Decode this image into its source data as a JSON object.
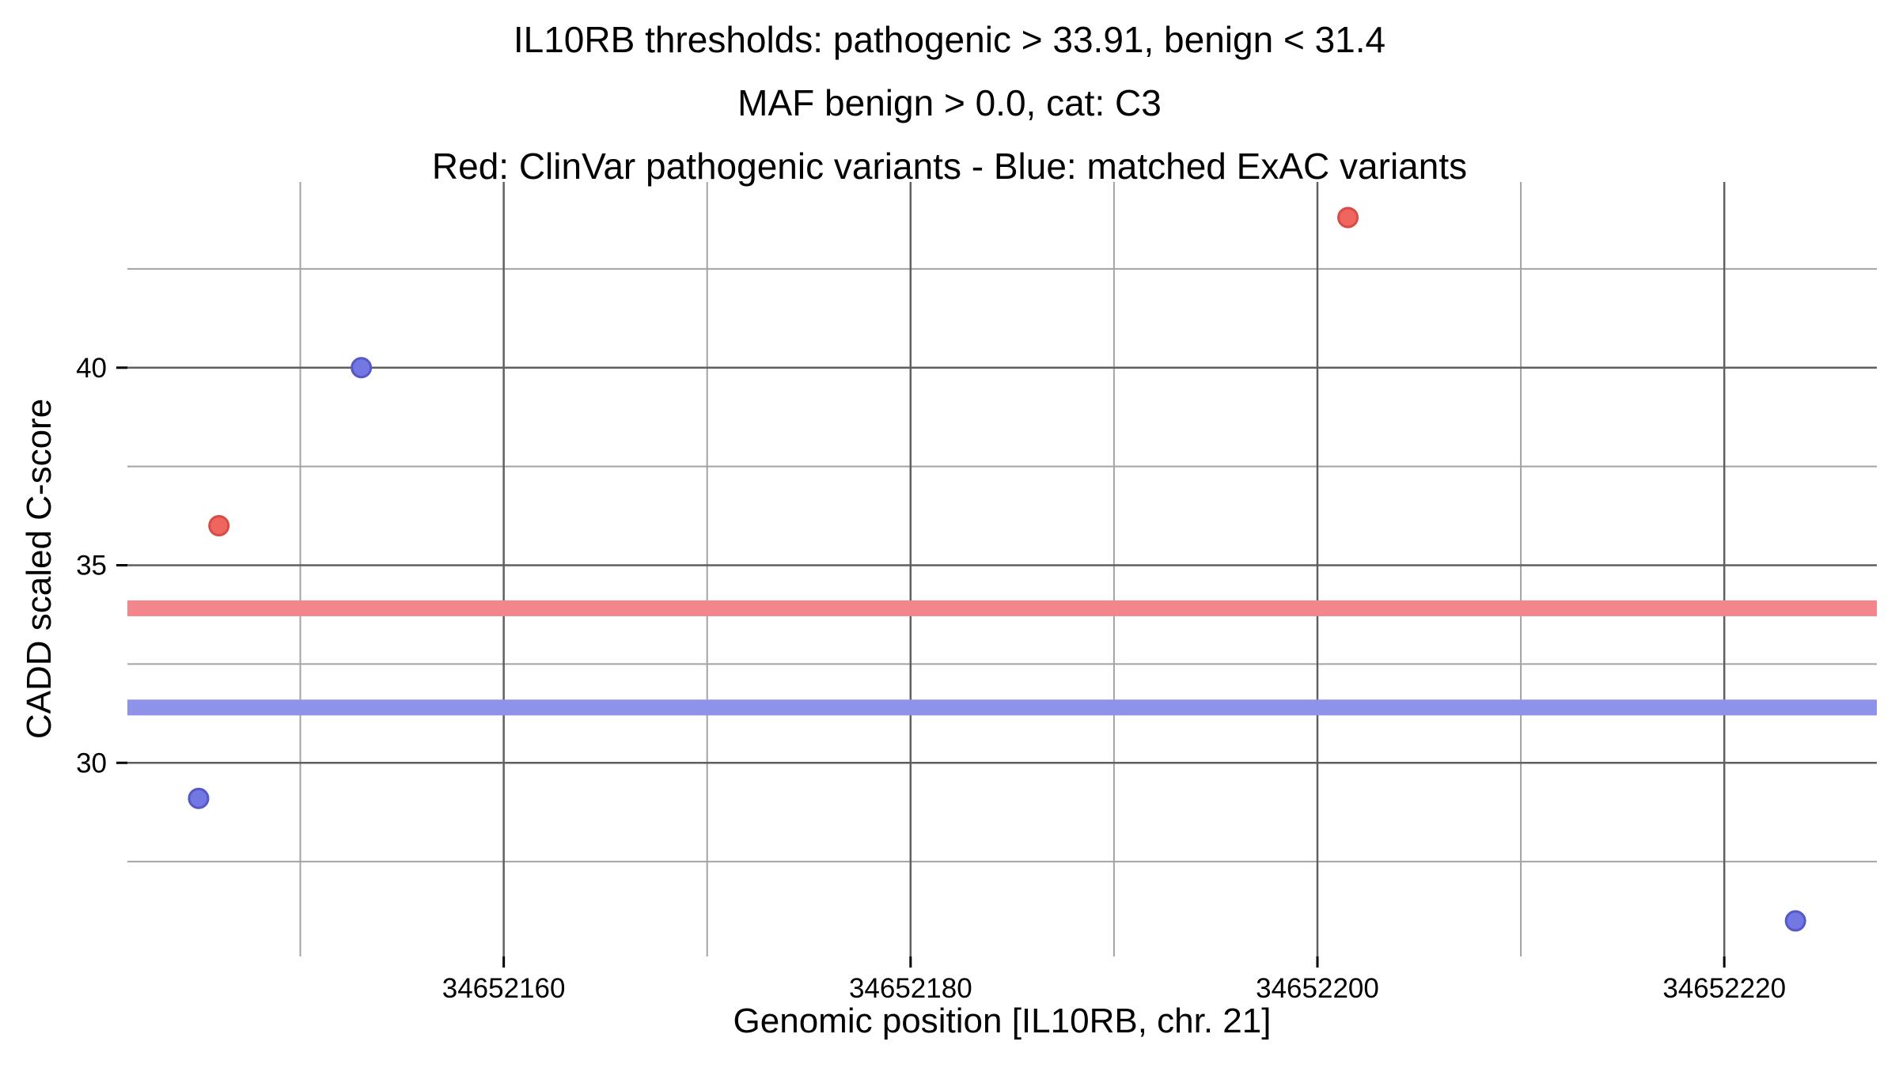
{
  "chart_data": {
    "type": "scatter",
    "title": "IL10RB thresholds: pathogenic > 33.91, benign < 31.4",
    "subtitle": "MAF benign > 0.0, cat: C3",
    "legend_note": "Red: ClinVar pathogenic variants - Blue: matched ExAC variants",
    "xlabel": "Genomic position [IL10RB, chr. 21]",
    "ylabel": "CADD scaled C-score",
    "xlim": [
      34652141.5,
      34652227.5
    ],
    "ylim": [
      25.1,
      44.7
    ],
    "x_ticks": [
      34652160,
      34652180,
      34652200,
      34652220
    ],
    "x_minor_ticks": [
      34652150,
      34652170,
      34652190,
      34652210
    ],
    "y_ticks": [
      30,
      35,
      40
    ],
    "y_minor_ticks": [
      27.5,
      32.5,
      37.5,
      42.5
    ],
    "grid": "major+minor",
    "legend_position": "none",
    "thresholds": [
      {
        "name": "pathogenic-threshold",
        "value": 33.91,
        "color": "#f2868c"
      },
      {
        "name": "benign-threshold",
        "value": 31.4,
        "color": "#8f92e9"
      }
    ],
    "series": [
      {
        "name": "ClinVar pathogenic variants",
        "color": "#ef655f",
        "edge_color": "#d94b45",
        "points": [
          {
            "x": 34652146,
            "y": 36.0
          },
          {
            "x": 34652201.5,
            "y": 43.8
          }
        ]
      },
      {
        "name": "matched ExAC variants",
        "color": "#7377e2",
        "edge_color": "#5559c7",
        "points": [
          {
            "x": 34652153,
            "y": 40.0
          },
          {
            "x": 34652145,
            "y": 29.1
          },
          {
            "x": 34652223.5,
            "y": 26.0
          }
        ]
      }
    ],
    "style": {
      "grid_major_color": "#5f5f5f",
      "grid_minor_color": "#a3a3a3",
      "tick_color": "#000000",
      "tick_label_color": "#000000",
      "point_radius": 12,
      "threshold_band_height": 20
    }
  }
}
